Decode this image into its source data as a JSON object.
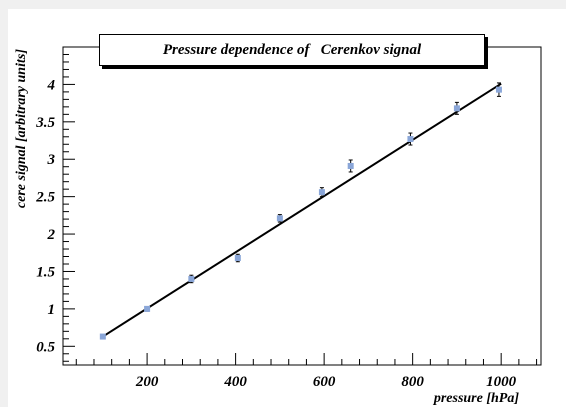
{
  "chart_data": {
    "type": "scatter",
    "title": "Pressure dependence of   Cerenkov signal",
    "xlabel": "pressure [hPa]",
    "ylabel": "cere signal [arbitrary units]",
    "xlim": [
      10,
      1090
    ],
    "ylim": [
      0.25,
      4.5
    ],
    "x_ticks": [
      200,
      400,
      600,
      800,
      1000
    ],
    "x_tick_labels": [
      "200",
      "400",
      "600",
      "800",
      "1000"
    ],
    "y_ticks": [
      0.5,
      1,
      1.5,
      2,
      2.5,
      3,
      3.5,
      4
    ],
    "y_tick_labels": [
      "0.5",
      "1",
      "1.5",
      "2",
      "2.5",
      "3",
      "3.5",
      "4"
    ],
    "grid": false,
    "legend": false,
    "series": [
      {
        "x": [
          100,
          200,
          300,
          405,
          500,
          595,
          660,
          795,
          900,
          995
        ],
        "y": [
          0.63,
          1.0,
          1.4,
          1.68,
          2.21,
          2.56,
          2.91,
          3.27,
          3.68,
          3.93
        ],
        "y_err": [
          0.02,
          0.03,
          0.05,
          0.05,
          0.05,
          0.06,
          0.08,
          0.08,
          0.08,
          0.09
        ],
        "color": "#8aa6d8"
      }
    ],
    "fit_line": {
      "x": [
        100,
        1000
      ],
      "y": [
        0.63,
        4.01
      ],
      "color": "#000000"
    }
  }
}
